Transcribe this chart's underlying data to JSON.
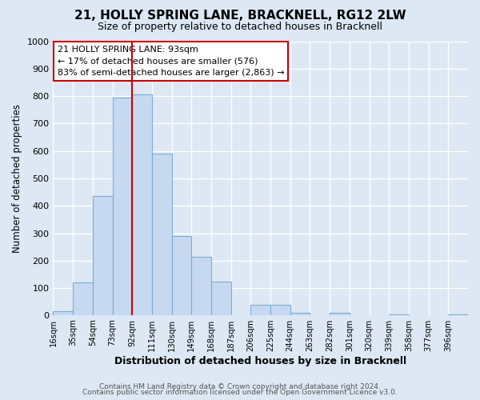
{
  "title": "21, HOLLY SPRING LANE, BRACKNELL, RG12 2LW",
  "subtitle": "Size of property relative to detached houses in Bracknell",
  "xlabel": "Distribution of detached houses by size in Bracknell",
  "ylabel": "Number of detached properties",
  "bin_labels": [
    "16sqm",
    "35sqm",
    "54sqm",
    "73sqm",
    "92sqm",
    "111sqm",
    "130sqm",
    "149sqm",
    "168sqm",
    "187sqm",
    "206sqm",
    "225sqm",
    "244sqm",
    "263sqm",
    "282sqm",
    "301sqm",
    "320sqm",
    "339sqm",
    "358sqm",
    "377sqm",
    "396sqm"
  ],
  "bar_values": [
    15,
    120,
    435,
    795,
    805,
    590,
    290,
    213,
    125,
    0,
    40,
    40,
    10,
    0,
    10,
    0,
    0,
    5,
    0,
    0,
    5
  ],
  "bar_color": "#c6d9f1",
  "bar_edge_color": "#7aadd4",
  "vline_at_index": 4,
  "vline_color": "#cc0000",
  "ylim": [
    0,
    1000
  ],
  "yticks": [
    0,
    100,
    200,
    300,
    400,
    500,
    600,
    700,
    800,
    900,
    1000
  ],
  "annotation_title": "21 HOLLY SPRING LANE: 93sqm",
  "annotation_line1": "← 17% of detached houses are smaller (576)",
  "annotation_line2": "83% of semi-detached houses are larger (2,863) →",
  "annotation_box_facecolor": "white",
  "annotation_box_edgecolor": "#cc0000",
  "footer_line1": "Contains HM Land Registry data © Crown copyright and database right 2024.",
  "footer_line2": "Contains public sector information licensed under the Open Government Licence v3.0.",
  "bg_color": "#dde8f4",
  "grid_color": "#ffffff",
  "grid_linewidth": 1.0
}
